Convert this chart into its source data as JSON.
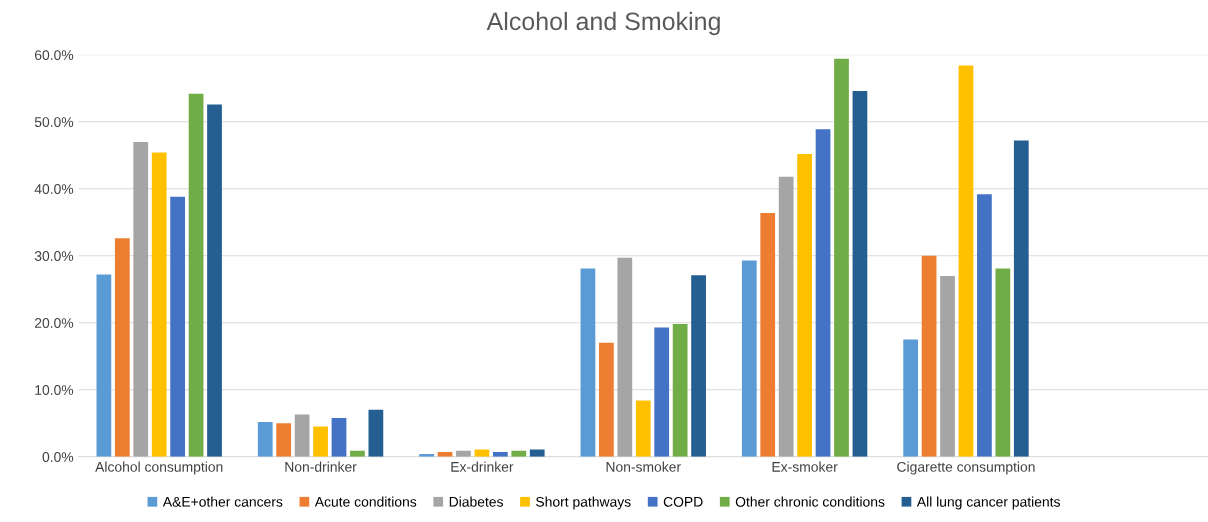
{
  "chart_data": {
    "type": "bar",
    "title": "Alcohol and Smoking",
    "categories": [
      "Alcohol consumption",
      "Non-drinker",
      "Ex-drinker",
      "Non-smoker",
      "Ex-smoker",
      "Cigarette consumption",
      null
    ],
    "series": [
      {
        "name": "A&E+other cancers",
        "color": "#5b9bd5",
        "values": [
          27.2,
          5.2,
          0.4,
          28.1,
          29.3,
          17.5,
          null
        ]
      },
      {
        "name": "Acute conditions",
        "color": "#ed7d31",
        "values": [
          32.6,
          5.0,
          0.7,
          17.0,
          36.4,
          30.0,
          null
        ]
      },
      {
        "name": "Diabetes",
        "color": "#a5a5a5",
        "values": [
          47.0,
          6.3,
          0.9,
          29.7,
          41.8,
          27.0,
          null
        ]
      },
      {
        "name": "Short pathways",
        "color": "#ffc000",
        "values": [
          45.4,
          4.5,
          1.1,
          8.4,
          45.2,
          58.4,
          null
        ]
      },
      {
        "name": "COPD",
        "color": "#4472c4",
        "values": [
          38.8,
          5.8,
          0.7,
          19.3,
          48.9,
          39.2,
          null
        ]
      },
      {
        "name": "Other chronic conditions",
        "color": "#70ad47",
        "values": [
          54.2,
          0.9,
          0.9,
          19.8,
          59.4,
          28.1,
          null
        ]
      },
      {
        "name": "All lung cancer patients",
        "color": "#255e91",
        "values": [
          52.6,
          7.0,
          1.1,
          27.1,
          54.6,
          47.2,
          null
        ]
      }
    ],
    "ylim": [
      0,
      60
    ],
    "yticks": [
      {
        "value": 0,
        "label": "0.0%"
      },
      {
        "value": 10,
        "label": "10.0%"
      },
      {
        "value": 20,
        "label": "20.0%"
      },
      {
        "value": 30,
        "label": "30.0%"
      },
      {
        "value": 40,
        "label": "40.0%"
      },
      {
        "value": 50,
        "label": "50.0%"
      },
      {
        "value": 60,
        "label": "60.0%"
      }
    ],
    "grid": "y",
    "legend": "bottom"
  }
}
